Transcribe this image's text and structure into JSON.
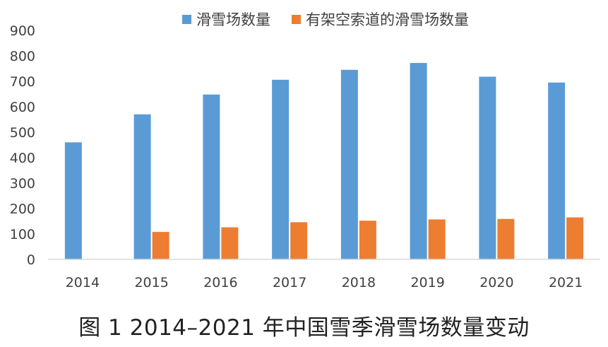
{
  "chart_data": {
    "type": "bar",
    "title": "",
    "xlabel": "",
    "ylabel": "",
    "categories": [
      "2014",
      "2015",
      "2016",
      "2017",
      "2018",
      "2019",
      "2020",
      "2021"
    ],
    "series": [
      {
        "name": "滑雪场数量",
        "color": "#5b9bd5",
        "values": [
          460,
          570,
          648,
          706,
          745,
          772,
          718,
          695
        ]
      },
      {
        "name": "有架空索道的滑雪场数量",
        "color": "#ed7d31",
        "values": [
          null,
          108,
          126,
          146,
          152,
          157,
          159,
          165
        ]
      }
    ],
    "ylim": [
      0,
      900
    ],
    "yticks": [
      "0",
      "100",
      "200",
      "300",
      "400",
      "500",
      "600",
      "700",
      "800",
      "900"
    ],
    "grid": false,
    "legend": "top-center"
  },
  "caption": "图 1  2014–2021 年中国雪季滑雪场数量变动"
}
